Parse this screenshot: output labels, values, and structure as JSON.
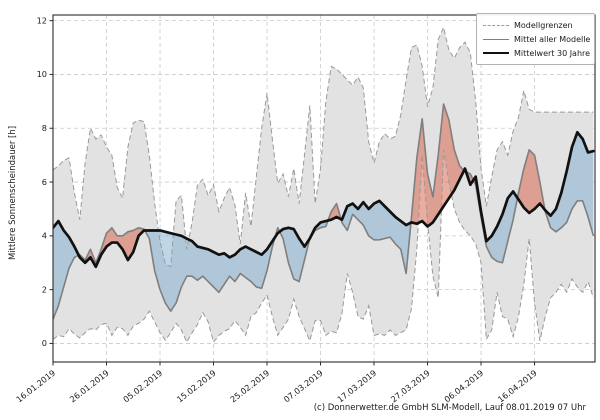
{
  "figure": {
    "ylabel": "Mittlere Sonnenscheindauer [h]",
    "caption": "(c) Donnerwetter.de GmbH SLM-Modell, Lauf 08.01.2019 07 Uhr"
  },
  "legend": {
    "items": [
      {
        "label": "Modellgrenzen",
        "style": "dashed"
      },
      {
        "label": "Mittel aller Modelle",
        "style": "gray"
      },
      {
        "label": "Mittelwert 30 Jahre",
        "style": "black"
      }
    ]
  },
  "colors": {
    "band_fill": "#e2e2e2",
    "band_edge": "#999999",
    "model_mean_line": "#7f7f7f",
    "climate_line": "#111111",
    "above_normal_fill": "rgba(216,92,66,0.5)",
    "below_normal_fill": "rgba(116,168,203,0.47)",
    "grid": "#c9c9c9",
    "frame": "#2b2b2b",
    "tick_text": "#1a1a1a"
  },
  "chart_data": {
    "type": "line",
    "title": "",
    "xlabel": "",
    "ylabel": "Mittlere Sonnenscheindauer [h]",
    "x_unit": "days since 16.01.2019 (daily values)",
    "xlim": [
      0,
      101.3
    ],
    "ylim": [
      -0.69,
      12.21
    ],
    "yticks": [
      0,
      2,
      4,
      6,
      8,
      10,
      12
    ],
    "xtick_days": [
      0,
      10,
      20,
      30,
      40,
      50,
      60,
      70,
      80,
      90
    ],
    "xtick_labels": [
      "16.01.2019",
      "26.01.2019",
      "05.02.2019",
      "15.02.2019",
      "25.02.2019",
      "07.03.2019",
      "17.03.2019",
      "27.03.2019",
      "06.04.2019",
      "16.04.2019"
    ],
    "grid": true,
    "legend_position": "upper right",
    "fills": {
      "band": "between Modellgrenzen oben/unten, light gray",
      "above_normal": "red where Mittel aller Modelle > Mittelwert 30 Jahre",
      "below_normal": "blue where Mittel aller Modelle < Mittelwert 30 Jahre"
    },
    "series": [
      {
        "name": "Modellgrenzen (oben)",
        "style": "dashed",
        "values": [
          6.45,
          6.6,
          6.8,
          6.9,
          5.6,
          4.6,
          6.7,
          8.0,
          7.6,
          7.75,
          7.3,
          7.0,
          5.8,
          5.4,
          7.3,
          8.2,
          8.3,
          8.25,
          7.0,
          5.2,
          3.8,
          2.95,
          2.85,
          5.3,
          5.5,
          3.5,
          4.5,
          5.9,
          6.1,
          5.5,
          5.9,
          4.9,
          5.4,
          5.8,
          5.15,
          3.7,
          5.6,
          4.35,
          6.2,
          8.0,
          9.3,
          7.6,
          5.95,
          6.3,
          5.45,
          6.5,
          5.2,
          7.0,
          8.85,
          5.2,
          6.5,
          9.0,
          10.3,
          10.2,
          10.0,
          9.8,
          9.6,
          9.9,
          9.5,
          7.5,
          6.7,
          7.5,
          7.8,
          7.6,
          7.7,
          8.5,
          9.8,
          11.0,
          11.1,
          10.3,
          8.8,
          9.5,
          11.3,
          11.75,
          10.9,
          10.6,
          11.0,
          11.2,
          10.8,
          9.0,
          6.5,
          5.1,
          6.2,
          7.2,
          7.5,
          7.0,
          7.9,
          8.4,
          9.4,
          8.7,
          8.6,
          8.6,
          8.6,
          8.6,
          8.6,
          8.6,
          8.6,
          8.6,
          8.6,
          8.6,
          8.6,
          8.6
        ]
      },
      {
        "name": "Modellgrenzen (unten)",
        "style": "dashed",
        "values": [
          0.15,
          0.3,
          0.25,
          0.55,
          0.35,
          0.2,
          0.4,
          0.55,
          0.5,
          0.7,
          0.75,
          0.3,
          0.6,
          0.55,
          0.3,
          0.65,
          0.75,
          0.9,
          1.2,
          0.8,
          0.4,
          0.12,
          0.4,
          0.75,
          0.5,
          0.05,
          0.4,
          0.7,
          1.15,
          0.8,
          0.05,
          0.3,
          0.45,
          0.55,
          0.85,
          0.6,
          0.3,
          1.0,
          1.15,
          1.5,
          1.8,
          1.0,
          0.3,
          0.6,
          0.9,
          1.65,
          1.0,
          0.55,
          0.1,
          0.85,
          0.85,
          0.3,
          0.45,
          0.4,
          1.1,
          2.6,
          1.9,
          1.0,
          0.9,
          1.4,
          0.3,
          0.35,
          0.3,
          0.5,
          0.3,
          0.4,
          0.5,
          1.3,
          3.5,
          7.0,
          4.5,
          2.5,
          1.7,
          7.2,
          6.0,
          5.0,
          4.5,
          4.2,
          4.0,
          3.7,
          3.0,
          0.15,
          0.5,
          1.9,
          1.0,
          0.9,
          0.25,
          1.0,
          2.2,
          3.9,
          1.5,
          0.1,
          1.0,
          1.7,
          1.9,
          2.2,
          1.9,
          2.4,
          2.1,
          1.9,
          2.3,
          1.7
        ]
      },
      {
        "name": "Mittel aller Modelle",
        "style": "gray",
        "values": [
          0.9,
          1.4,
          2.1,
          2.8,
          3.2,
          3.3,
          3.1,
          3.5,
          3.0,
          3.5,
          4.1,
          4.3,
          4.0,
          4.0,
          4.15,
          4.2,
          4.3,
          4.25,
          3.9,
          2.7,
          2.0,
          1.5,
          1.2,
          1.5,
          2.1,
          2.5,
          2.5,
          2.35,
          2.5,
          2.3,
          2.1,
          1.9,
          2.2,
          2.5,
          2.3,
          2.6,
          2.45,
          2.3,
          2.1,
          2.05,
          2.7,
          3.6,
          4.3,
          3.9,
          3.0,
          2.4,
          2.3,
          3.1,
          3.9,
          4.2,
          4.3,
          4.35,
          4.9,
          5.2,
          4.5,
          4.2,
          4.8,
          4.6,
          4.4,
          4.0,
          3.85,
          3.85,
          3.9,
          3.95,
          3.7,
          3.5,
          2.6,
          4.7,
          6.9,
          8.35,
          6.3,
          5.45,
          7.0,
          8.9,
          8.3,
          7.2,
          6.6,
          6.4,
          6.3,
          5.9,
          4.7,
          3.6,
          3.2,
          3.05,
          3.0,
          3.8,
          4.6,
          5.6,
          6.5,
          7.2,
          7.0,
          6.0,
          4.9,
          4.3,
          4.15,
          4.3,
          4.5,
          5.0,
          5.3,
          5.3,
          4.7,
          4.0
        ]
      },
      {
        "name": "Mittelwert 30 Jahre",
        "style": "black",
        "values": [
          4.3,
          4.55,
          4.2,
          3.95,
          3.6,
          3.2,
          3.0,
          3.2,
          2.85,
          3.3,
          3.6,
          3.75,
          3.75,
          3.5,
          3.1,
          3.4,
          4.0,
          4.2,
          4.2,
          4.2,
          4.2,
          4.15,
          4.1,
          4.05,
          4.0,
          3.9,
          3.8,
          3.6,
          3.55,
          3.5,
          3.4,
          3.3,
          3.35,
          3.2,
          3.3,
          3.5,
          3.6,
          3.5,
          3.4,
          3.3,
          3.5,
          3.8,
          4.1,
          4.25,
          4.3,
          4.25,
          3.9,
          3.6,
          3.9,
          4.3,
          4.5,
          4.55,
          4.6,
          4.7,
          4.6,
          5.1,
          5.2,
          5.0,
          5.25,
          5.0,
          5.2,
          5.3,
          5.1,
          4.9,
          4.7,
          4.55,
          4.4,
          4.5,
          4.45,
          4.55,
          4.35,
          4.5,
          4.8,
          5.1,
          5.4,
          5.7,
          6.1,
          6.5,
          5.9,
          6.2,
          4.9,
          3.8,
          4.0,
          4.35,
          4.8,
          5.4,
          5.65,
          5.35,
          5.05,
          4.85,
          5.0,
          5.2,
          4.95,
          4.75,
          5.0,
          5.6,
          6.4,
          7.3,
          7.85,
          7.6,
          7.1,
          7.15
        ]
      }
    ]
  }
}
